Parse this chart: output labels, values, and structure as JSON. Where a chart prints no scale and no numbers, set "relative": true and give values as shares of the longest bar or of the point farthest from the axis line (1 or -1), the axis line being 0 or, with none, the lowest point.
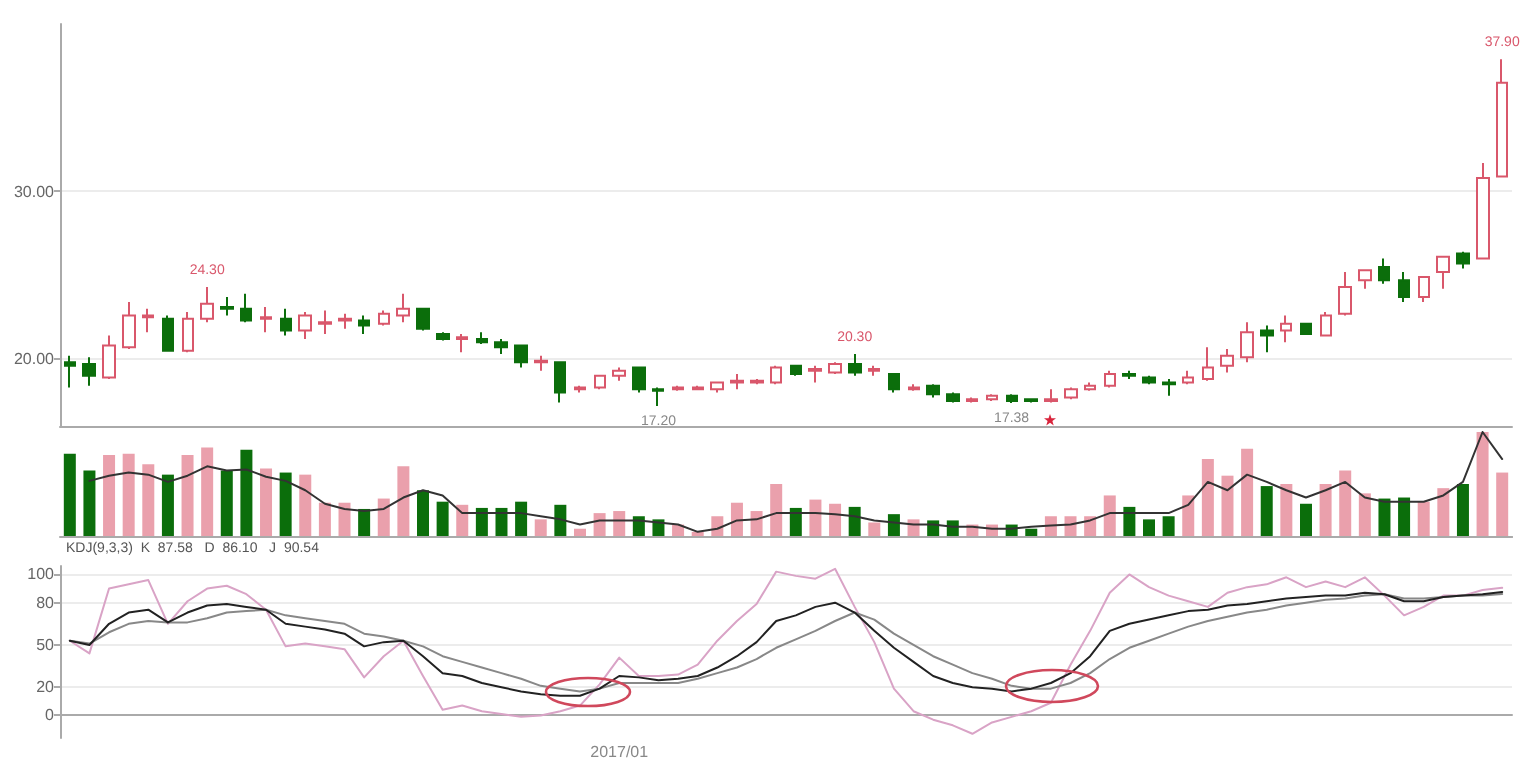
{
  "chart_data": [
    {
      "type": "candlestick",
      "categories": [
        null,
        null,
        null,
        null,
        null,
        null,
        null,
        null,
        null,
        null,
        null,
        null,
        null,
        null,
        null,
        null,
        null,
        null,
        null,
        null,
        null,
        null,
        null,
        null,
        null,
        null,
        null,
        null,
        null,
        null,
        null,
        null,
        null,
        null,
        null,
        null,
        null,
        null,
        null,
        null,
        null,
        null,
        null,
        null,
        null,
        null,
        null,
        null,
        null,
        null,
        null,
        null,
        null,
        null,
        null,
        null,
        null,
        null,
        null,
        null,
        null,
        null,
        null,
        null,
        null,
        null,
        null,
        null,
        null,
        null,
        null,
        null,
        null,
        null
      ],
      "ohlc": [
        [
          19.8,
          20.2,
          18.3,
          19.6
        ],
        [
          19.7,
          20.1,
          18.4,
          19.0
        ],
        [
          18.9,
          21.4,
          18.8,
          20.8
        ],
        [
          20.7,
          23.4,
          20.6,
          22.6
        ],
        [
          22.5,
          23.0,
          21.6,
          22.6
        ],
        [
          22.4,
          22.6,
          20.5,
          20.5
        ],
        [
          20.5,
          22.8,
          20.4,
          22.4
        ],
        [
          22.4,
          24.3,
          22.2,
          23.3
        ],
        [
          23.1,
          23.7,
          22.6,
          23.0
        ],
        [
          23.0,
          23.9,
          22.2,
          22.3
        ],
        [
          22.4,
          23.1,
          21.6,
          22.5
        ],
        [
          22.4,
          23.0,
          21.4,
          21.7
        ],
        [
          21.7,
          22.8,
          21.2,
          22.6
        ],
        [
          22.1,
          22.9,
          21.5,
          22.2
        ],
        [
          22.3,
          22.7,
          21.8,
          22.4
        ],
        [
          22.3,
          22.6,
          21.5,
          22.0
        ],
        [
          22.1,
          22.9,
          22.0,
          22.7
        ],
        [
          22.6,
          23.9,
          22.2,
          23.0
        ],
        [
          23.0,
          23.0,
          21.7,
          21.8
        ],
        [
          21.5,
          21.6,
          21.1,
          21.2
        ],
        [
          21.2,
          21.5,
          20.4,
          21.3
        ],
        [
          21.2,
          21.6,
          20.9,
          21.0
        ],
        [
          21.0,
          21.2,
          20.3,
          20.7
        ],
        [
          20.8,
          20.8,
          19.5,
          19.8
        ],
        [
          19.8,
          20.2,
          19.3,
          19.9
        ],
        [
          19.8,
          19.8,
          17.4,
          18.0
        ],
        [
          18.2,
          18.4,
          18.0,
          18.3
        ],
        [
          18.3,
          19.0,
          18.2,
          19.0
        ],
        [
          19.0,
          19.5,
          18.7,
          19.3
        ],
        [
          19.5,
          19.5,
          18.0,
          18.2
        ],
        [
          18.2,
          18.3,
          17.2,
          18.1
        ],
        [
          18.2,
          18.4,
          18.1,
          18.3
        ],
        [
          18.2,
          18.4,
          18.2,
          18.3
        ],
        [
          18.2,
          18.6,
          18.0,
          18.6
        ],
        [
          18.6,
          19.1,
          18.2,
          18.7
        ],
        [
          18.6,
          18.8,
          18.5,
          18.7
        ],
        [
          18.6,
          19.6,
          18.5,
          19.5
        ],
        [
          19.6,
          19.6,
          19.0,
          19.1
        ],
        [
          19.3,
          19.6,
          18.6,
          19.4
        ],
        [
          19.2,
          19.8,
          19.1,
          19.7
        ],
        [
          19.7,
          20.3,
          19.0,
          19.2
        ],
        [
          19.3,
          19.6,
          19.0,
          19.4
        ],
        [
          19.1,
          19.1,
          18.0,
          18.2
        ],
        [
          18.2,
          18.5,
          18.1,
          18.3
        ],
        [
          18.4,
          18.5,
          17.7,
          17.9
        ],
        [
          17.9,
          18.0,
          17.4,
          17.5
        ],
        [
          17.5,
          17.7,
          17.4,
          17.6
        ],
        [
          17.6,
          17.9,
          17.5,
          17.8
        ],
        [
          17.8,
          17.9,
          17.38,
          17.5
        ],
        [
          17.6,
          17.6,
          17.4,
          17.5
        ],
        [
          17.5,
          18.2,
          17.4,
          17.6
        ],
        [
          17.7,
          18.3,
          17.6,
          18.2
        ],
        [
          18.2,
          18.6,
          18.1,
          18.4
        ],
        [
          18.4,
          19.3,
          18.3,
          19.1
        ],
        [
          19.1,
          19.3,
          18.8,
          19.0
        ],
        [
          18.9,
          19.0,
          18.5,
          18.6
        ],
        [
          18.6,
          18.8,
          17.8,
          18.5
        ],
        [
          18.6,
          19.3,
          18.5,
          18.9
        ],
        [
          18.8,
          20.7,
          18.7,
          19.5
        ],
        [
          19.6,
          20.6,
          19.2,
          20.2
        ],
        [
          20.1,
          22.2,
          19.8,
          21.6
        ],
        [
          21.7,
          22.0,
          20.4,
          21.4
        ],
        [
          21.7,
          22.6,
          21.0,
          22.1
        ],
        [
          22.1,
          22.1,
          21.5,
          21.5
        ],
        [
          21.4,
          22.8,
          21.4,
          22.6
        ],
        [
          22.7,
          25.2,
          22.6,
          24.3
        ],
        [
          24.7,
          25.3,
          24.2,
          25.3
        ],
        [
          25.5,
          26.0,
          24.5,
          24.7
        ],
        [
          24.7,
          25.2,
          23.4,
          23.7
        ],
        [
          23.7,
          24.9,
          23.4,
          24.9
        ],
        [
          25.2,
          26.1,
          24.2,
          26.1
        ],
        [
          26.3,
          26.4,
          25.4,
          25.7
        ],
        [
          26.0,
          31.7,
          26.0,
          30.8
        ],
        [
          30.9,
          37.9,
          30.9,
          36.5
        ]
      ],
      "colors": [
        "#0b6e0b",
        "#0b6e0b",
        "#d9576b",
        "#d9576b",
        "#d9576b",
        "#0b6e0b",
        "#d9576b",
        "#d9576b",
        "#0b6e0b",
        "#0b6e0b",
        "#d9576b",
        "#0b6e0b",
        "#d9576b",
        "#d9576b",
        "#d9576b",
        "#0b6e0b",
        "#d9576b",
        "#d9576b",
        "#0b6e0b",
        "#0b6e0b",
        "#d9576b",
        "#0b6e0b",
        "#0b6e0b",
        "#0b6e0b",
        "#d9576b",
        "#0b6e0b",
        "#d9576b",
        "#d9576b",
        "#d9576b",
        "#0b6e0b",
        "#0b6e0b",
        "#d9576b",
        "#d9576b",
        "#d9576b",
        "#d9576b",
        "#d9576b",
        "#d9576b",
        "#0b6e0b",
        "#d9576b",
        "#d9576b",
        "#0b6e0b",
        "#d9576b",
        "#0b6e0b",
        "#d9576b",
        "#0b6e0b",
        "#0b6e0b",
        "#d9576b",
        "#d9576b",
        "#0b6e0b",
        "#0b6e0b",
        "#d9576b",
        "#d9576b",
        "#d9576b",
        "#d9576b",
        "#0b6e0b",
        "#0b6e0b",
        "#0b6e0b",
        "#d9576b",
        "#d9576b",
        "#d9576b",
        "#d9576b",
        "#0b6e0b",
        "#d9576b",
        "#0b6e0b",
        "#d9576b",
        "#d9576b",
        "#d9576b",
        "#0b6e0b",
        "#0b6e0b",
        "#d9576b",
        "#d9576b",
        "#0b6e0b",
        "#d9576b",
        "#d9576b"
      ],
      "ylim": [
        16,
        40
      ],
      "yticks": [
        {
          "value": 20,
          "label": "20.00"
        },
        {
          "value": 30,
          "label": "30.00"
        }
      ],
      "grid": "y",
      "tick_labels": "y",
      "annotations": [
        {
          "text": "24.30",
          "y": 24.3
        },
        {
          "text": "17.20",
          "y": 17.2
        },
        {
          "text": "20.30",
          "y": 20.3
        },
        {
          "text": "17.38",
          "y": 17.38
        },
        {
          "text": "37.90",
          "y": 37.9
        }
      ]
    },
    {
      "type": "bar",
      "relative": true,
      "tick_labels": false,
      "categories": [
        null,
        null,
        null,
        null,
        null,
        null,
        null,
        null,
        null,
        null,
        null,
        null,
        null,
        null,
        null,
        null,
        null,
        null,
        null,
        null,
        null,
        null,
        null,
        null,
        null,
        null,
        null,
        null,
        null,
        null,
        null,
        null,
        null,
        null,
        null,
        null,
        null,
        null,
        null,
        null,
        null,
        null,
        null,
        null,
        null,
        null,
        null,
        null,
        null,
        null,
        null,
        null,
        null,
        null,
        null,
        null,
        null,
        null,
        null,
        null,
        null,
        null,
        null,
        null,
        null,
        null,
        null,
        null,
        null,
        null,
        null,
        null,
        null,
        null
      ],
      "colors": [
        "#0b6e0b",
        "#0b6e0b",
        "#eaa0ac",
        "#eaa0ac",
        "#eaa0ac",
        "#0b6e0b",
        "#eaa0ac",
        "#eaa0ac",
        "#0b6e0b",
        "#0b6e0b",
        "#eaa0ac",
        "#0b6e0b",
        "#eaa0ac",
        "#eaa0ac",
        "#eaa0ac",
        "#0b6e0b",
        "#eaa0ac",
        "#eaa0ac",
        "#0b6e0b",
        "#0b6e0b",
        "#eaa0ac",
        "#0b6e0b",
        "#0b6e0b",
        "#0b6e0b",
        "#eaa0ac",
        "#0b6e0b",
        "#eaa0ac",
        "#eaa0ac",
        "#eaa0ac",
        "#0b6e0b",
        "#0b6e0b",
        "#eaa0ac",
        "#eaa0ac",
        "#eaa0ac",
        "#eaa0ac",
        "#eaa0ac",
        "#eaa0ac",
        "#0b6e0b",
        "#eaa0ac",
        "#eaa0ac",
        "#0b6e0b",
        "#eaa0ac",
        "#0b6e0b",
        "#eaa0ac",
        "#0b6e0b",
        "#0b6e0b",
        "#eaa0ac",
        "#eaa0ac",
        "#0b6e0b",
        "#0b6e0b",
        "#eaa0ac",
        "#eaa0ac",
        "#eaa0ac",
        "#eaa0ac",
        "#0b6e0b",
        "#0b6e0b",
        "#0b6e0b",
        "#eaa0ac",
        "#eaa0ac",
        "#eaa0ac",
        "#eaa0ac",
        "#0b6e0b",
        "#eaa0ac",
        "#0b6e0b",
        "#eaa0ac",
        "#eaa0ac",
        "#eaa0ac",
        "#0b6e0b",
        "#0b6e0b",
        "#eaa0ac",
        "#eaa0ac",
        "#0b6e0b",
        "#eaa0ac",
        "#eaa0ac"
      ],
      "values": [
        0.79,
        0.63,
        0.78,
        0.79,
        0.69,
        0.59,
        0.78,
        0.85,
        0.63,
        0.83,
        0.65,
        0.61,
        0.59,
        0.32,
        0.32,
        0.26,
        0.36,
        0.67,
        0.44,
        0.33,
        0.3,
        0.27,
        0.27,
        0.33,
        0.16,
        0.3,
        0.07,
        0.22,
        0.24,
        0.19,
        0.16,
        0.11,
        0.04,
        0.19,
        0.32,
        0.24,
        0.5,
        0.27,
        0.35,
        0.31,
        0.28,
        0.13,
        0.21,
        0.16,
        0.15,
        0.15,
        0.11,
        0.11,
        0.11,
        0.07,
        0.19,
        0.19,
        0.19,
        0.39,
        0.28,
        0.16,
        0.19,
        0.39,
        0.74,
        0.58,
        0.84,
        0.48,
        0.5,
        0.31,
        0.5,
        0.63,
        0.41,
        0.36,
        0.37,
        0.33,
        0.46,
        0.5,
        1,
        0.61
      ]
    },
    {
      "type": "line",
      "relative": true,
      "tick_labels": false,
      "marker": "none",
      "categories": [
        null,
        null,
        null,
        null,
        null,
        null,
        null,
        null,
        null,
        null,
        null,
        null,
        null,
        null,
        null,
        null,
        null,
        null,
        null,
        null,
        null,
        null,
        null,
        null,
        null,
        null,
        null,
        null,
        null,
        null,
        null,
        null,
        null,
        null,
        null,
        null,
        null,
        null,
        null,
        null,
        null,
        null,
        null,
        null,
        null,
        null,
        null,
        null,
        null,
        null,
        null,
        null,
        null,
        null,
        null,
        null,
        null,
        null,
        null,
        null,
        null,
        null,
        null,
        null,
        null,
        null,
        null,
        null,
        null,
        null,
        null,
        null,
        null
      ],
      "color": "#333333",
      "values": [
        0.53,
        0.58,
        0.61,
        0.59,
        0.52,
        0.58,
        0.67,
        0.63,
        0.64,
        0.57,
        0.53,
        0.44,
        0.31,
        0.26,
        0.24,
        0.26,
        0.37,
        0.44,
        0.39,
        0.22,
        0.22,
        0.22,
        0.22,
        0.19,
        0.16,
        0.11,
        0.15,
        0.15,
        0.15,
        0.13,
        0.11,
        0.04,
        0.07,
        0.15,
        0.16,
        0.22,
        0.22,
        0.22,
        0.21,
        0.19,
        0.15,
        0.13,
        0.11,
        0.11,
        0.09,
        0.09,
        0.07,
        0.07,
        0.09,
        0.1,
        0.11,
        0.15,
        0.22,
        0.22,
        0.22,
        0.22,
        0.3,
        0.52,
        0.44,
        0.59,
        0.52,
        0.44,
        0.37,
        0.44,
        0.52,
        0.37,
        0.33,
        0.33,
        0.33,
        0.39,
        0.52,
        1,
        0.74
      ]
    },
    {
      "type": "line",
      "categories": [
        null,
        null,
        null,
        null,
        null,
        null,
        null,
        null,
        null,
        null,
        null,
        null,
        null,
        null,
        null,
        null,
        null,
        null,
        null,
        null,
        null,
        null,
        null,
        null,
        null,
        null,
        null,
        null,
        "2017/01",
        null,
        null,
        null,
        null,
        null,
        null,
        null,
        null,
        null,
        null,
        null,
        null,
        null,
        null,
        null,
        null,
        null,
        null,
        null,
        null,
        null,
        null,
        null,
        null,
        null,
        null,
        null,
        null,
        null,
        null,
        null,
        null,
        null,
        null,
        null,
        null,
        null,
        null,
        null,
        null,
        null,
        null,
        null,
        null,
        null
      ],
      "series": [
        {
          "color": "#d9a3c6",
          "values": [
            53,
            44,
            90,
            93,
            96,
            65,
            81,
            90,
            92,
            86,
            75,
            49,
            51,
            49,
            47,
            27,
            42,
            53,
            28,
            4,
            7,
            3,
            1,
            -1,
            0,
            3,
            7,
            22,
            41,
            28,
            28,
            29,
            36,
            53,
            67,
            79,
            102,
            99,
            97,
            104,
            77,
            52,
            19,
            3,
            -3,
            -7,
            -13,
            -5,
            -1,
            3,
            9,
            36,
            60,
            87,
            100,
            91,
            85,
            81,
            77,
            87,
            91,
            93,
            98,
            91,
            95,
            91,
            98,
            85,
            71,
            77,
            85,
            85,
            89,
            90.54
          ]
        },
        {
          "color": "#888888",
          "values": [
            53,
            51,
            59,
            65,
            67,
            66,
            66,
            69,
            73,
            74,
            75,
            71,
            69,
            67,
            65,
            58,
            56,
            53,
            49,
            42,
            38,
            34,
            30,
            26,
            21,
            19,
            17,
            19,
            23,
            23,
            23,
            23,
            26,
            30,
            34,
            40,
            48,
            54,
            60,
            67,
            73,
            68,
            58,
            50,
            42,
            36,
            30,
            26,
            21,
            19,
            19,
            23,
            30,
            40,
            48,
            53,
            58,
            63,
            67,
            70,
            73,
            75,
            78,
            80,
            82,
            83,
            85,
            86,
            83,
            83,
            84,
            85,
            85,
            86.1
          ]
        },
        {
          "color": "#222222",
          "values": [
            53,
            50,
            65,
            73,
            75,
            66,
            73,
            78,
            79,
            77,
            75,
            65,
            63,
            61,
            58,
            49,
            52,
            53,
            42,
            30,
            28,
            23,
            20,
            17,
            15,
            14,
            14,
            19,
            28,
            27,
            25,
            26,
            28,
            34,
            42,
            52,
            67,
            71,
            77,
            80,
            73,
            60,
            48,
            38,
            28,
            23,
            20,
            19,
            17,
            19,
            23,
            30,
            42,
            60,
            65,
            68,
            71,
            74,
            75,
            78,
            79,
            81,
            83,
            84,
            85,
            85,
            87,
            86,
            81,
            81,
            84,
            85,
            86,
            87.58
          ]
        }
      ],
      "ylim": [
        -16,
        106
      ],
      "yticks": [
        0,
        20,
        50,
        80,
        100
      ],
      "grid": "y",
      "marker": "none",
      "line_style": "solid",
      "annotations": [
        "KDJ(9,3,3)  K  87.58   D  86.10   J  90.54"
      ]
    }
  ]
}
